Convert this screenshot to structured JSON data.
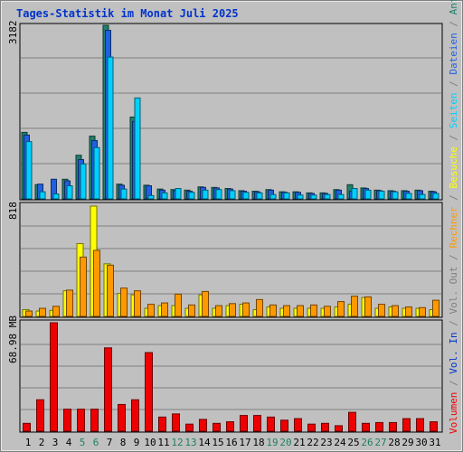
{
  "title": "Tages-Statistik im Monat Juli 2025",
  "colors": {
    "background": "#c0c0c0",
    "anfragen": "#20806c",
    "dateien": "#2060e0",
    "seiten": "#00d0ff",
    "besuche": "#ffff00",
    "rechner": "#ff9900",
    "vol_out": "#808080",
    "vol_in": "#0033cc",
    "volumen": "#ee0000",
    "weekend": "#208060",
    "weekday": "#000000"
  },
  "chart_data": [
    {
      "type": "bar",
      "name": "hits-chart",
      "ymax_label": "3182",
      "ylim": [
        0,
        3182
      ],
      "categories": [
        "1",
        "2",
        "3",
        "4",
        "5",
        "6",
        "7",
        "8",
        "9",
        "10",
        "11",
        "12",
        "13",
        "14",
        "15",
        "16",
        "17",
        "18",
        "19",
        "20",
        "21",
        "22",
        "23",
        "24",
        "25",
        "26",
        "27",
        "28",
        "29",
        "30",
        "31"
      ],
      "weekend_days": [
        5,
        6,
        12,
        13,
        19,
        20,
        26,
        27
      ],
      "series": [
        {
          "name": "Anfragen",
          "color": "#20806c",
          "values": [
            1220,
            260,
            0,
            360,
            800,
            1150,
            3182,
            270,
            1500,
            250,
            180,
            170,
            160,
            220,
            210,
            190,
            150,
            140,
            170,
            130,
            130,
            110,
            110,
            170,
            260,
            200,
            160,
            150,
            150,
            160,
            140
          ]
        },
        {
          "name": "Dateien",
          "color": "#2060e0",
          "values": [
            1170,
            270,
            360,
            330,
            720,
            1070,
            3090,
            250,
            1420,
            240,
            160,
            150,
            140,
            210,
            200,
            180,
            140,
            130,
            160,
            120,
            120,
            100,
            100,
            160,
            140,
            190,
            150,
            140,
            140,
            150,
            130
          ]
        },
        {
          "name": "Seiten",
          "color": "#00d0ff",
          "values": [
            1050,
            130,
            90,
            240,
            640,
            940,
            2600,
            180,
            1850,
            60,
            110,
            190,
            120,
            160,
            170,
            150,
            120,
            110,
            80,
            110,
            70,
            70,
            80,
            80,
            190,
            160,
            140,
            130,
            100,
            80,
            100
          ]
        }
      ]
    },
    {
      "type": "bar",
      "name": "visits-chart",
      "ymax_label": "818",
      "ylim": [
        0,
        818
      ],
      "series": [
        {
          "name": "Besuche",
          "color": "#ffff00",
          "values": [
            50,
            40,
            45,
            190,
            540,
            818,
            390,
            170,
            160,
            60,
            80,
            80,
            60,
            160,
            60,
            80,
            90,
            50,
            70,
            60,
            60,
            60,
            60,
            70,
            90,
            140,
            60,
            70,
            60,
            60,
            50
          ]
        },
        {
          "name": "Rechner",
          "color": "#ff9900",
          "values": [
            40,
            60,
            75,
            195,
            440,
            490,
            380,
            210,
            190,
            90,
            100,
            165,
            85,
            185,
            80,
            95,
            100,
            125,
            85,
            80,
            80,
            85,
            75,
            110,
            150,
            145,
            90,
            80,
            70,
            65,
            120
          ]
        }
      ]
    },
    {
      "type": "bar",
      "name": "volume-chart",
      "ymax_label": "68.98 MB",
      "ylim": [
        0,
        68.98
      ],
      "series": [
        {
          "name": "Volumen",
          "color": "#ee0000",
          "values": [
            5,
            20,
            68.98,
            14,
            14,
            14,
            53,
            17,
            20,
            50,
            9,
            11,
            4.5,
            7.5,
            5,
            6,
            10,
            10,
            9,
            7,
            8,
            4.5,
            5,
            3.5,
            12,
            5,
            5.5,
            5.5,
            8,
            8,
            6
          ]
        }
      ]
    }
  ],
  "legend": [
    {
      "label": "Volumen",
      "color": "#ee0000"
    },
    {
      "label": "/",
      "color": "#808080"
    },
    {
      "label": "Vol. In",
      "color": "#0033cc"
    },
    {
      "label": "/",
      "color": "#808080"
    },
    {
      "label": "Vol. Out",
      "color": "#808080"
    },
    {
      "label": "/",
      "color": "#808080"
    },
    {
      "label": "Rechner",
      "color": "#ff9900"
    },
    {
      "label": "/",
      "color": "#808080"
    },
    {
      "label": "Besuche",
      "color": "#ffff00"
    },
    {
      "label": "/",
      "color": "#808080"
    },
    {
      "label": "Seiten",
      "color": "#00d0ff"
    },
    {
      "label": "/",
      "color": "#808080"
    },
    {
      "label": "Dateien",
      "color": "#2060e0"
    },
    {
      "label": "/",
      "color": "#808080"
    },
    {
      "label": "Anfragen",
      "color": "#20806c"
    }
  ]
}
